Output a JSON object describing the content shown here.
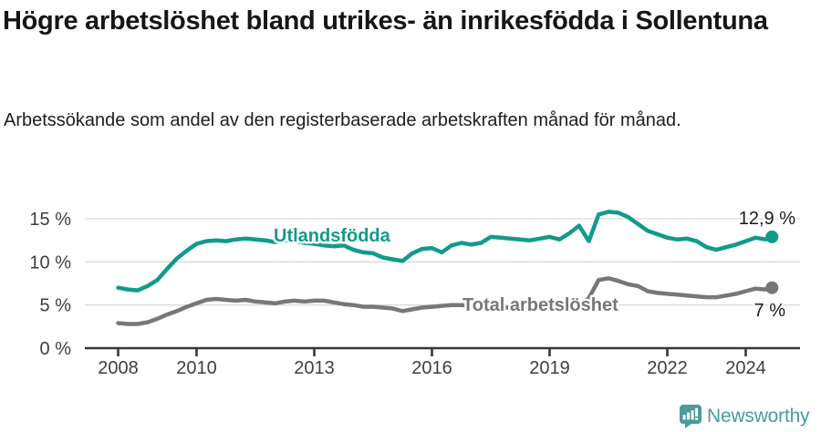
{
  "header": {
    "title": "Högre arbetslöshet bland utrikes- än inrikesfödda i Sollentuna",
    "subtitle": "Arbetssökande som andel av den registerbaserade arbetskraften månad för månad."
  },
  "chart_data": {
    "type": "line",
    "title": "Högre arbetslöshet bland utrikes- än inrikesfödda i Sollentuna",
    "subtitle": "Arbetssökande som andel av den registerbaserade arbetskraften månad för månad.",
    "x_unit": "decimal years (monthly share of registered labour force, %)",
    "x": [
      2008,
      2008.25,
      2008.5,
      2008.75,
      2009,
      2009.25,
      2009.5,
      2009.75,
      2010,
      2010.25,
      2010.5,
      2010.75,
      2011,
      2011.25,
      2011.5,
      2011.75,
      2012,
      2012.25,
      2012.5,
      2012.75,
      2013,
      2013.25,
      2013.5,
      2013.75,
      2014,
      2014.25,
      2014.5,
      2014.75,
      2015,
      2015.25,
      2015.5,
      2015.75,
      2016,
      2016.25,
      2016.5,
      2016.75,
      2017,
      2017.25,
      2017.5,
      2017.75,
      2018,
      2018.25,
      2018.5,
      2018.75,
      2019,
      2019.25,
      2019.5,
      2019.75,
      2020,
      2020.25,
      2020.5,
      2020.75,
      2021,
      2021.25,
      2021.5,
      2021.75,
      2022,
      2022.25,
      2022.5,
      2022.75,
      2023,
      2023.25,
      2023.5,
      2023.75,
      2024,
      2024.25,
      2024.5,
      2024.67
    ],
    "series": [
      {
        "name": "Utlandsfödda",
        "color": "#129a8c",
        "end_value_label": "12,9 %",
        "end_value": 12.9,
        "values": [
          7.0,
          6.8,
          6.7,
          7.2,
          7.9,
          9.2,
          10.4,
          11.3,
          12.1,
          12.4,
          12.5,
          12.4,
          12.6,
          12.7,
          12.6,
          12.5,
          12.3,
          12.5,
          12.4,
          12.2,
          12.1,
          11.9,
          11.8,
          11.9,
          11.4,
          11.1,
          11.0,
          10.5,
          10.3,
          10.1,
          11.0,
          11.5,
          11.6,
          11.1,
          11.9,
          12.2,
          12.0,
          12.2,
          12.9,
          12.8,
          12.7,
          12.6,
          12.5,
          12.7,
          12.9,
          12.6,
          13.3,
          14.2,
          12.4,
          15.5,
          15.8,
          15.7,
          15.2,
          14.4,
          13.6,
          13.2,
          12.8,
          12.6,
          12.7,
          12.4,
          11.7,
          11.4,
          11.7,
          12.0,
          12.4,
          12.8,
          12.6,
          12.9
        ]
      },
      {
        "name": "Total arbetslöshet",
        "color": "#77777b",
        "end_value_label": "7 %",
        "end_value": 7.0,
        "values": [
          2.9,
          2.8,
          2.8,
          3.0,
          3.4,
          3.9,
          4.3,
          4.8,
          5.2,
          5.6,
          5.7,
          5.6,
          5.5,
          5.6,
          5.4,
          5.3,
          5.2,
          5.4,
          5.5,
          5.4,
          5.5,
          5.5,
          5.3,
          5.1,
          5.0,
          4.8,
          4.8,
          4.7,
          4.6,
          4.3,
          4.5,
          4.7,
          4.8,
          4.9,
          5.0,
          5.0,
          4.9,
          4.9,
          4.8,
          4.7,
          4.7,
          4.6,
          4.6,
          4.6,
          4.6,
          4.7,
          4.8,
          5.0,
          5.8,
          7.9,
          8.1,
          7.8,
          7.4,
          7.2,
          6.6,
          6.4,
          6.3,
          6.2,
          6.1,
          6.0,
          5.9,
          5.9,
          6.1,
          6.3,
          6.6,
          6.9,
          6.8,
          7.0
        ]
      }
    ],
    "xticks": {
      "values": [
        2008,
        2010,
        2013,
        2016,
        2019,
        2022,
        2024
      ],
      "labels": [
        "2008",
        "2010",
        "2013",
        "2016",
        "2019",
        "2022",
        "2024"
      ]
    },
    "yticks": {
      "values": [
        0,
        5,
        10,
        15
      ],
      "labels": [
        "0 %",
        "5 %",
        "10 %",
        "15 %"
      ]
    },
    "ylim": [
      0,
      16.8
    ],
    "xlim": [
      2007.15,
      2025.4
    ],
    "grid": "horizontal-only",
    "legend_position": "inline-series-labels"
  },
  "footer": {
    "brand_name": "Newsworthy",
    "brand_icon": "newsworthy-speech-bubble-bar-chart-icon"
  },
  "colors": {
    "series_utlandsfodda": "#129a8c",
    "series_total": "#77777b",
    "grid": "#d9d9d9",
    "axis": "#383838",
    "tick_text": "#3f3f3f",
    "value_text": "#1a1a1a",
    "brand": "#4a9b9c",
    "background": "#ffffff"
  }
}
